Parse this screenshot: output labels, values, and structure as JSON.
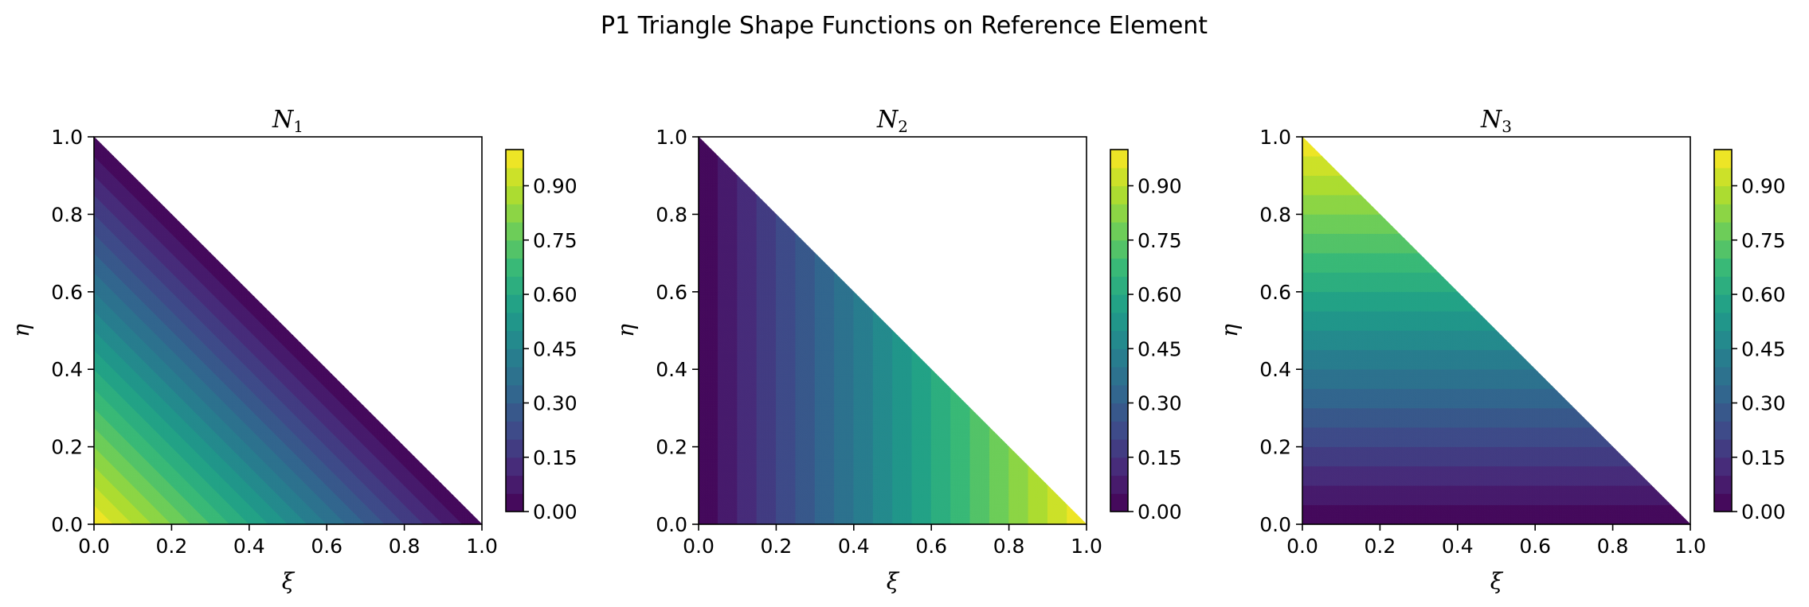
{
  "figure": {
    "title": "P1 Triangle Shape Functions on Reference Element"
  },
  "chart_data": [
    {
      "type": "heatmap",
      "subtype": "filled-contour",
      "title": "N",
      "title_subscript": "1",
      "xlabel": "ξ",
      "ylabel": "η",
      "function": "1 - xi - eta",
      "xlim": [
        0.0,
        1.0
      ],
      "ylim": [
        0.0,
        1.0
      ],
      "xticks": [
        "0.0",
        "0.2",
        "0.4",
        "0.6",
        "0.8",
        "1.0"
      ],
      "yticks": [
        "0.0",
        "0.2",
        "0.4",
        "0.6",
        "0.8",
        "1.0"
      ],
      "domain": "triangle with vertices (0,0), (1,0), (0,1)",
      "corner_values": {
        "v00": 1.0,
        "v10": 0.0,
        "v01": 0.0
      },
      "levels": 20,
      "colorbar": {
        "min": 0.0,
        "max": 1.0,
        "ticks": [
          "0.00",
          "0.15",
          "0.30",
          "0.45",
          "0.60",
          "0.75",
          "0.90"
        ]
      },
      "colormap": "viridis"
    },
    {
      "type": "heatmap",
      "subtype": "filled-contour",
      "title": "N",
      "title_subscript": "2",
      "xlabel": "ξ",
      "ylabel": "η",
      "function": "xi",
      "xlim": [
        0.0,
        1.0
      ],
      "ylim": [
        0.0,
        1.0
      ],
      "xticks": [
        "0.0",
        "0.2",
        "0.4",
        "0.6",
        "0.8",
        "1.0"
      ],
      "yticks": [
        "0.0",
        "0.2",
        "0.4",
        "0.6",
        "0.8",
        "1.0"
      ],
      "domain": "triangle with vertices (0,0), (1,0), (0,1)",
      "corner_values": {
        "v00": 0.0,
        "v10": 1.0,
        "v01": 0.0
      },
      "levels": 20,
      "colorbar": {
        "min": 0.0,
        "max": 1.0,
        "ticks": [
          "0.00",
          "0.15",
          "0.30",
          "0.45",
          "0.60",
          "0.75",
          "0.90"
        ]
      },
      "colormap": "viridis"
    },
    {
      "type": "heatmap",
      "subtype": "filled-contour",
      "title": "N",
      "title_subscript": "3",
      "xlabel": "ξ",
      "ylabel": "η",
      "function": "eta",
      "xlim": [
        0.0,
        1.0
      ],
      "ylim": [
        0.0,
        1.0
      ],
      "xticks": [
        "0.0",
        "0.2",
        "0.4",
        "0.6",
        "0.8",
        "1.0"
      ],
      "yticks": [
        "0.0",
        "0.2",
        "0.4",
        "0.6",
        "0.8",
        "1.0"
      ],
      "domain": "triangle with vertices (0,0), (1,0), (0,1)",
      "corner_values": {
        "v00": 0.0,
        "v10": 0.0,
        "v01": 1.0
      },
      "levels": 20,
      "colorbar": {
        "min": 0.0,
        "max": 1.0,
        "ticks": [
          "0.00",
          "0.15",
          "0.30",
          "0.45",
          "0.60",
          "0.75",
          "0.90"
        ]
      },
      "colormap": "viridis"
    }
  ],
  "colors": {
    "viridis_stops": [
      "#440154",
      "#482878",
      "#3e4a89",
      "#31688e",
      "#26828e",
      "#1f9e89",
      "#35b779",
      "#6ece58",
      "#b5de2b",
      "#fde725"
    ],
    "axes": "#000000",
    "background": "#ffffff"
  }
}
